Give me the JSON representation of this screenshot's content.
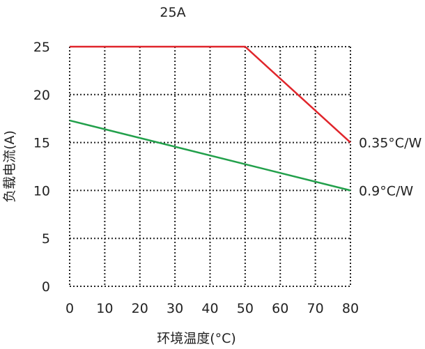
{
  "chart_data": {
    "type": "line",
    "title": "25A",
    "xlabel": "环境温度(°C)",
    "ylabel": "负载电流(A)",
    "x_ticks": [
      "0",
      "10",
      "20",
      "30",
      "40",
      "50",
      "60",
      "70",
      "80"
    ],
    "y_ticks": [
      "0",
      "5",
      "10",
      "15",
      "20",
      "25"
    ],
    "xlim": [
      0,
      80
    ],
    "ylim": [
      0,
      25
    ],
    "grid": true,
    "grid_style": "dotted",
    "series": [
      {
        "name": "0.35°C/W",
        "color": "#e0252b",
        "x": [
          0,
          50,
          80
        ],
        "y": [
          25,
          25,
          15
        ]
      },
      {
        "name": "0.9°C/W",
        "color": "#22a04b",
        "x": [
          0,
          80
        ],
        "y": [
          17.3,
          10
        ]
      }
    ]
  }
}
